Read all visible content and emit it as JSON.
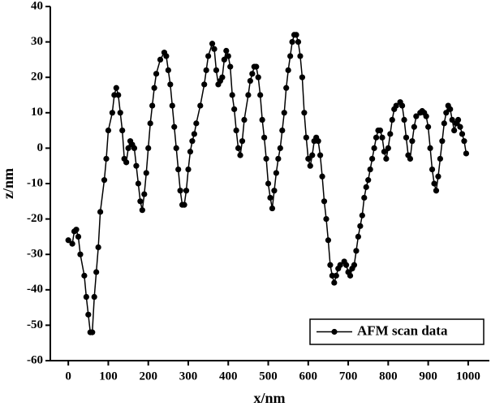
{
  "chart_data": {
    "type": "line",
    "xlabel": "x/nm",
    "ylabel": "z/nm",
    "x": [
      0,
      10,
      15,
      20,
      25,
      30,
      40,
      45,
      50,
      55,
      60,
      65,
      70,
      75,
      80,
      90,
      95,
      100,
      110,
      115,
      120,
      125,
      130,
      135,
      140,
      145,
      150,
      155,
      160,
      165,
      170,
      175,
      180,
      185,
      190,
      195,
      200,
      205,
      210,
      215,
      220,
      230,
      240,
      245,
      250,
      255,
      260,
      265,
      270,
      275,
      280,
      285,
      290,
      295,
      300,
      305,
      310,
      315,
      320,
      330,
      340,
      345,
      350,
      360,
      365,
      370,
      375,
      380,
      385,
      390,
      395,
      400,
      405,
      410,
      415,
      420,
      425,
      430,
      435,
      440,
      450,
      455,
      460,
      465,
      470,
      475,
      480,
      485,
      490,
      495,
      500,
      505,
      510,
      515,
      520,
      525,
      530,
      535,
      540,
      545,
      550,
      555,
      560,
      565,
      570,
      575,
      580,
      585,
      590,
      595,
      600,
      605,
      610,
      615,
      620,
      625,
      630,
      635,
      640,
      645,
      650,
      655,
      660,
      665,
      670,
      675,
      680,
      690,
      695,
      700,
      705,
      710,
      715,
      720,
      725,
      730,
      735,
      740,
      745,
      750,
      755,
      760,
      765,
      770,
      775,
      780,
      785,
      790,
      795,
      800,
      805,
      810,
      815,
      820,
      830,
      835,
      840,
      845,
      850,
      855,
      860,
      865,
      870,
      880,
      885,
      890,
      895,
      900,
      905,
      910,
      915,
      920,
      925,
      930,
      935,
      940,
      945,
      950,
      955,
      960,
      965,
      970,
      975,
      980,
      985,
      990,
      995
    ],
    "series": [
      {
        "name": "AFM scan data",
        "color": "#000000",
        "values": [
          -26,
          -27,
          -23.5,
          -23,
          -25,
          -30,
          -36,
          -42,
          -47,
          -52,
          -52,
          -42,
          -35,
          -28,
          -18,
          -9,
          -3,
          5,
          10,
          15,
          17,
          15,
          10,
          5,
          -3,
          -4,
          0,
          2,
          1,
          0,
          -5,
          -10,
          -15,
          -17.5,
          -13,
          -7,
          0,
          7,
          12,
          17,
          21,
          25,
          27,
          26,
          22,
          18,
          12,
          6,
          0,
          -6,
          -12,
          -16,
          -16,
          -12,
          -6,
          -1,
          2,
          4,
          7,
          12,
          18,
          22,
          26,
          29.5,
          28,
          22,
          18,
          19,
          20,
          25,
          27.5,
          26,
          23,
          15,
          11,
          5,
          0,
          -2,
          2,
          8,
          15,
          19,
          21,
          23,
          23,
          20,
          15,
          8,
          3,
          -3,
          -10,
          -14,
          -17,
          -12,
          -7,
          -3,
          0,
          5,
          10,
          17,
          22,
          26,
          30,
          32,
          32,
          30,
          26,
          20,
          10,
          3,
          -3,
          -5,
          -2,
          2,
          3,
          2,
          -2,
          -8,
          -15,
          -20,
          -26,
          -33,
          -36,
          -38,
          -36,
          -34,
          -33,
          -32,
          -33,
          -35,
          -36,
          -34,
          -33,
          -29,
          -25,
          -22,
          -19,
          -14,
          -11,
          -9,
          -6,
          -3,
          0,
          3,
          5,
          5,
          3,
          -1,
          -3,
          0,
          4,
          8,
          11,
          12,
          13,
          12,
          8,
          3,
          -2,
          -3,
          2,
          6,
          9,
          10,
          10.5,
          10,
          9,
          6,
          0,
          -6,
          -10,
          -12,
          -8,
          -3,
          2,
          7,
          10,
          12,
          11,
          8,
          5,
          7,
          8,
          6,
          4,
          2,
          -1.5
        ]
      }
    ],
    "xlim": [
      -45,
      1053
    ],
    "ylim": [
      -60,
      40
    ],
    "xticks": [
      0,
      100,
      200,
      300,
      400,
      500,
      600,
      700,
      800,
      900,
      1000
    ],
    "yticks": [
      -60,
      -50,
      -40,
      -30,
      -20,
      -10,
      0,
      10,
      20,
      30,
      40
    ],
    "legend": "lower right",
    "grid": false
  }
}
